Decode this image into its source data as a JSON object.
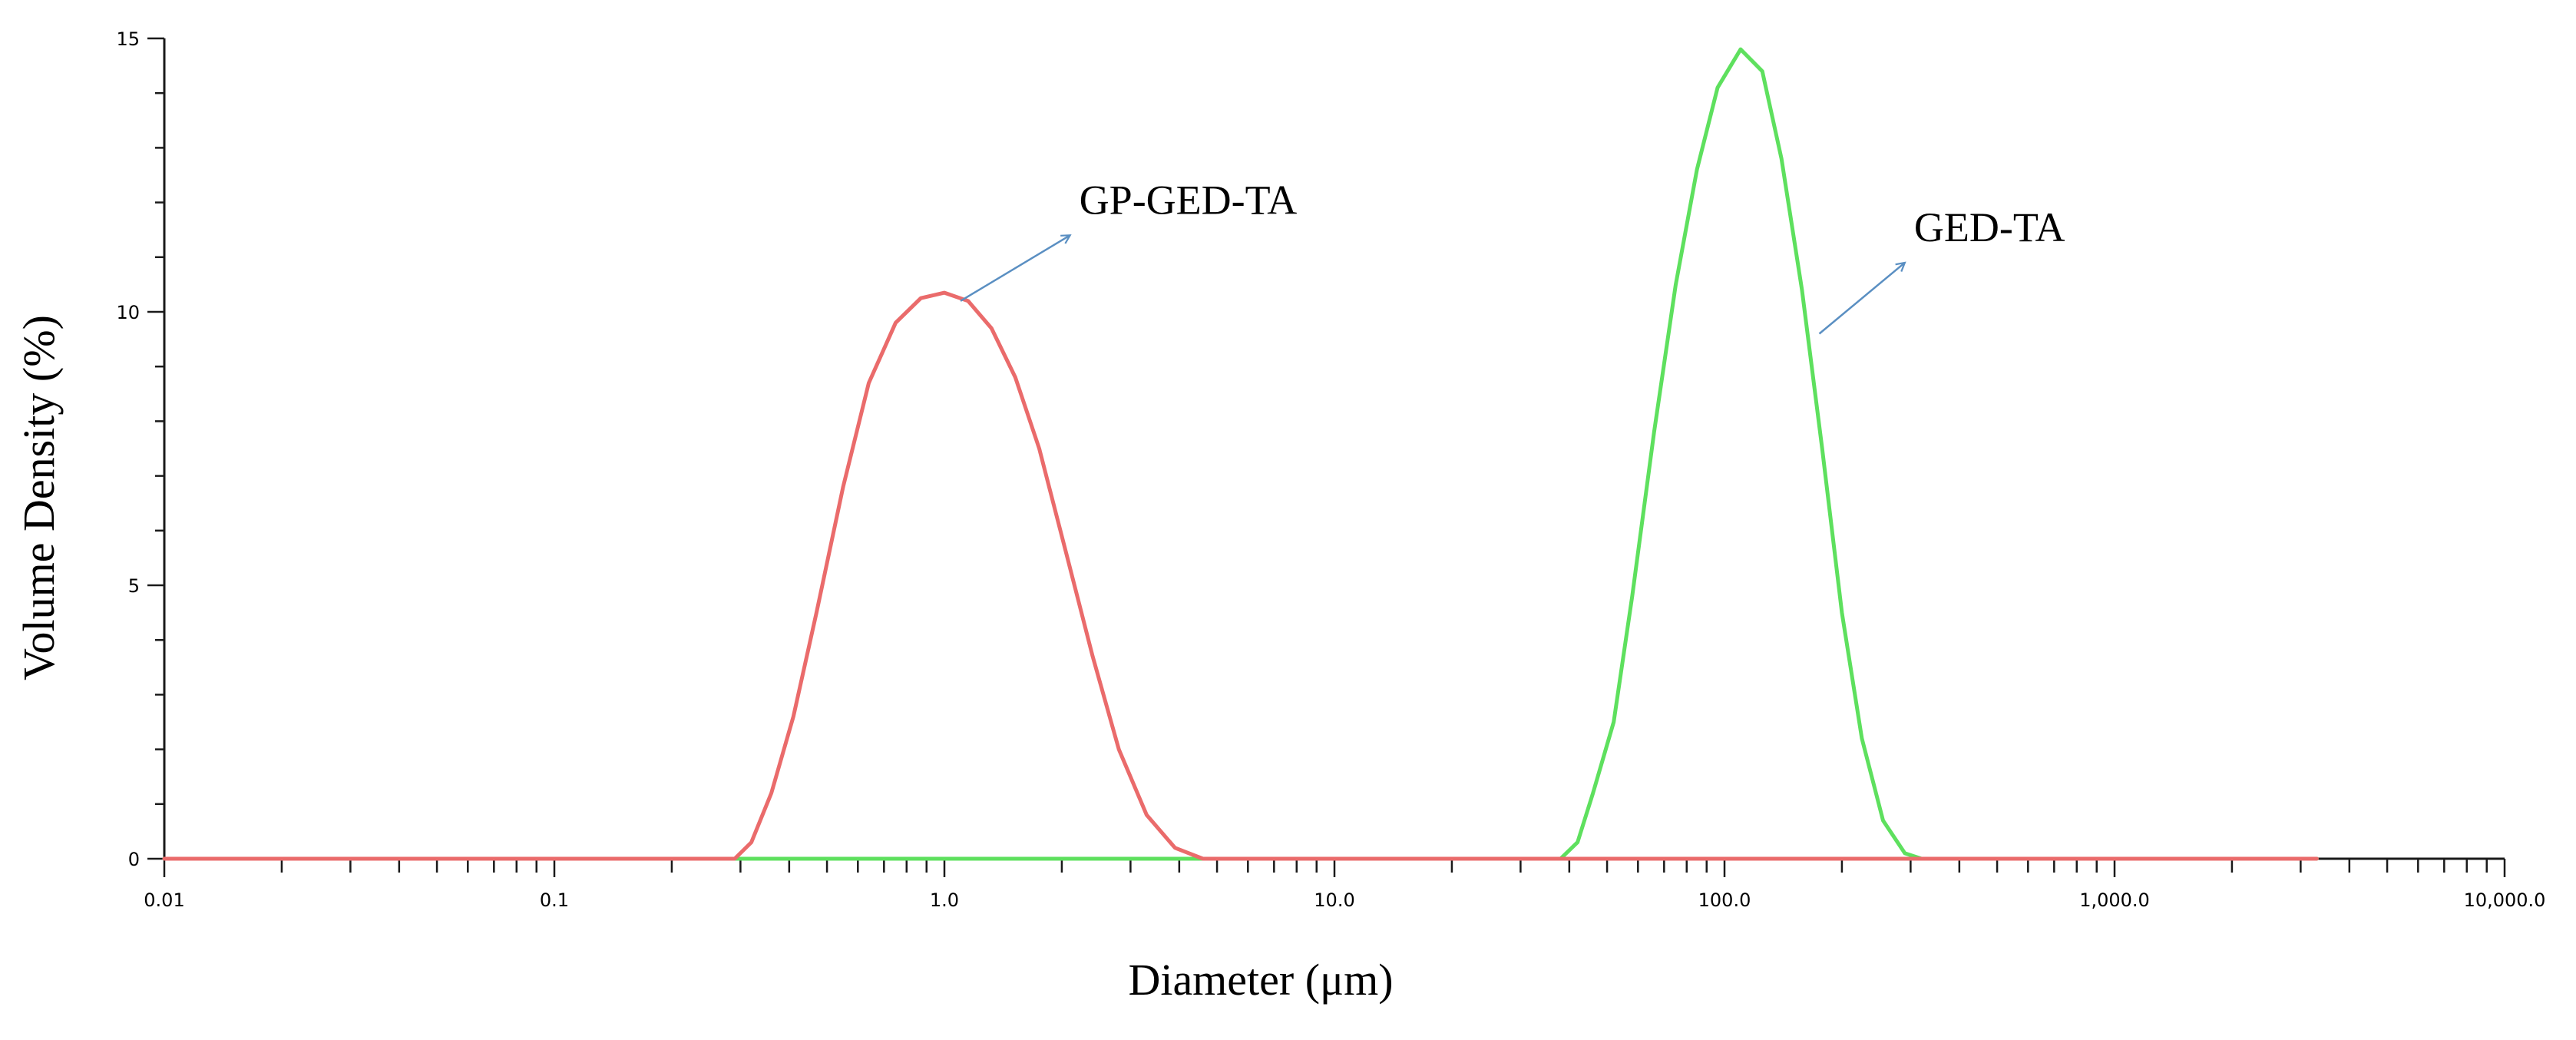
{
  "chart_data": {
    "type": "line",
    "x_scale": "log",
    "xlabel": "Diameter (μm)",
    "ylabel": "Volume Density (%)",
    "xlim": [
      0.01,
      10000
    ],
    "ylim": [
      0,
      15
    ],
    "x_tick_labels": [
      {
        "value": 0.01,
        "label": "0.01"
      },
      {
        "value": 0.1,
        "label": "0.1"
      },
      {
        "value": 1,
        "label": "1.0"
      },
      {
        "value": 10,
        "label": "10.0"
      },
      {
        "value": 100,
        "label": "100.0"
      },
      {
        "value": 1000,
        "label": "1,000.0"
      },
      {
        "value": 10000,
        "label": "10,000.0"
      }
    ],
    "y_tick_labels": [
      {
        "value": 0,
        "label": "0"
      },
      {
        "value": 5,
        "label": "5"
      },
      {
        "value": 10,
        "label": "10"
      },
      {
        "value": 15,
        "label": "15"
      }
    ],
    "series": [
      {
        "name": "GED-TA",
        "color": "#5ee05e",
        "points": [
          [
            0.01,
            0
          ],
          [
            38,
            0
          ],
          [
            42,
            0.3
          ],
          [
            46,
            1.2
          ],
          [
            52,
            2.5
          ],
          [
            58,
            4.8
          ],
          [
            66,
            7.8
          ],
          [
            75,
            10.5
          ],
          [
            85,
            12.6
          ],
          [
            96,
            14.1
          ],
          [
            110,
            14.8
          ],
          [
            125,
            14.4
          ],
          [
            140,
            12.8
          ],
          [
            158,
            10.4
          ],
          [
            178,
            7.5
          ],
          [
            200,
            4.5
          ],
          [
            225,
            2.2
          ],
          [
            255,
            0.7
          ],
          [
            290,
            0.1
          ],
          [
            320,
            0
          ],
          [
            3300,
            0
          ]
        ]
      },
      {
        "name": "GP-GED-TA",
        "color": "#ea6b6b",
        "points": [
          [
            0.01,
            0
          ],
          [
            0.29,
            0
          ],
          [
            0.32,
            0.3
          ],
          [
            0.36,
            1.2
          ],
          [
            0.41,
            2.6
          ],
          [
            0.47,
            4.5
          ],
          [
            0.55,
            6.8
          ],
          [
            0.64,
            8.7
          ],
          [
            0.75,
            9.8
          ],
          [
            0.87,
            10.25
          ],
          [
            1.0,
            10.35
          ],
          [
            1.15,
            10.2
          ],
          [
            1.32,
            9.7
          ],
          [
            1.52,
            8.8
          ],
          [
            1.75,
            7.5
          ],
          [
            2.05,
            5.6
          ],
          [
            2.4,
            3.7
          ],
          [
            2.8,
            2.0
          ],
          [
            3.3,
            0.8
          ],
          [
            3.9,
            0.2
          ],
          [
            4.6,
            0
          ],
          [
            3300,
            0
          ]
        ]
      }
    ],
    "annotations": [
      {
        "text": "GP-GED-TA",
        "series": "GP-GED-TA",
        "arrow_from": [
          1.1,
          10.2
        ],
        "arrow_to": [
          2.1,
          11.4
        ]
      },
      {
        "text": "GED-TA",
        "series": "GED-TA",
        "arrow_from": [
          175,
          9.6
        ],
        "arrow_to": [
          290,
          10.9
        ]
      }
    ],
    "axis_color": "#1a1a1a",
    "arrow_color": "#5a8fc2"
  }
}
